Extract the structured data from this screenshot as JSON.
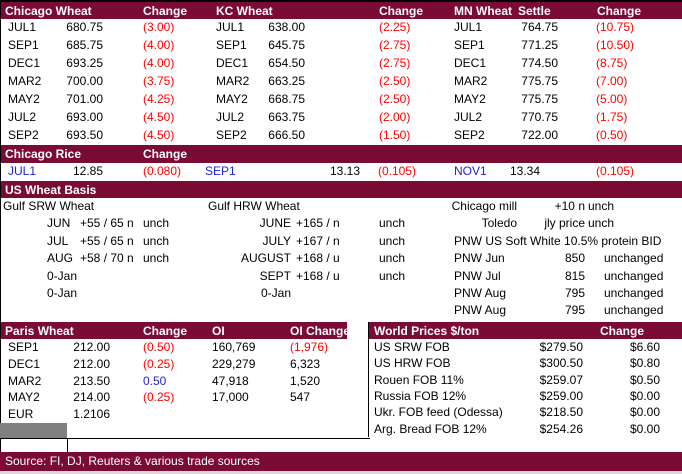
{
  "colors": {
    "maroon": "#7A0B35",
    "negative_red": "#FF0000",
    "positive_blue": "#2222CC",
    "gray_cell": "#808080",
    "bottom_strip": "#D9D9D9"
  },
  "futures": {
    "chicago_title": "Chicago Wheat",
    "chicago_change_label": "Change",
    "kc_title": "KC Wheat",
    "kc_change_label": "Change",
    "mn_title": "MN Wheat",
    "mn_settle_label": "Settle",
    "mn_change_label": "Change",
    "rows": [
      {
        "m1": "JUL1",
        "p1": "680.75",
        "c1": "(3.00)",
        "m2": "JUL1",
        "p2": "638.00",
        "c2": "(2.25)",
        "m3": "JUL1",
        "p3": "764.75",
        "c3": "(10.75)"
      },
      {
        "m1": "SEP1",
        "p1": "685.75",
        "c1": "(4.00)",
        "m2": "SEP1",
        "p2": "645.75",
        "c2": "(2.75)",
        "m3": "SEP1",
        "p3": "771.25",
        "c3": "(10.50)"
      },
      {
        "m1": "DEC1",
        "p1": "693.25",
        "c1": "(4.00)",
        "m2": "DEC1",
        "p2": "654.50",
        "c2": "(2.75)",
        "m3": "DEC1",
        "p3": "774.50",
        "c3": "(8.75)"
      },
      {
        "m1": "MAR2",
        "p1": "700.00",
        "c1": "(3.75)",
        "m2": "MAR2",
        "p2": "663.25",
        "c2": "(2.50)",
        "m3": "MAR2",
        "p3": "775.75",
        "c3": "(7.00)"
      },
      {
        "m1": "MAY2",
        "p1": "701.00",
        "c1": "(4.25)",
        "m2": "MAY2",
        "p2": "668.75",
        "c2": "(2.50)",
        "m3": "MAY2",
        "p3": "775.75",
        "c3": "(5.00)"
      },
      {
        "m1": "JUL2",
        "p1": "693.00",
        "c1": "(4.50)",
        "m2": "JUL2",
        "p2": "663.75",
        "c2": "(2.00)",
        "m3": "JUL2",
        "p3": "770.75",
        "c3": "(1.75)"
      },
      {
        "m1": "SEP2",
        "p1": "693.50",
        "c1": "(4.50)",
        "m2": "SEP2",
        "p2": "666.50",
        "c2": "(1.50)",
        "m3": "SEP2",
        "p3": "722.00",
        "c3": "(0.50)"
      }
    ]
  },
  "rice": {
    "title": "Chicago Rice",
    "change_label": "Change",
    "m1": "JUL1",
    "p1": "12.85",
    "c1": "(0.080)",
    "m2": "SEP1",
    "p2": "13.13",
    "c2": "(0.105)",
    "m3": "NOV1",
    "p3": "13.34",
    "c3": "(0.105)"
  },
  "basis": {
    "title": "US Wheat Basis",
    "rows": [
      {
        "st": "Gulf SRW Wheat",
        "ht": "Gulf HRW Wheat",
        "mill_r": "Chicago mill",
        "mval": "+10 n",
        "mchg_a": "unch"
      },
      {
        "sm": "JUN",
        "sv": "+55 / 65 n",
        "sc": "unch",
        "hm": "JUNE",
        "hv": "+165 / n",
        "hc": "unch",
        "mill_r": "Toledo",
        "mval": "jly price",
        "mchg_a": "unch"
      },
      {
        "sm": "JUL",
        "sv": "+55 / 65 n",
        "sc": "unch",
        "hm": "JULY",
        "hv": "+167 / n",
        "hc": "unch",
        "mill_long": "PNW US Soft White 10.5% protein BID"
      },
      {
        "sm": "AUG",
        "sv": "+58 / 70 n",
        "sc": "unch",
        "hm": "AUGUST",
        "hv": "+168 / u",
        "hc": "unch",
        "mill_l": "PNW Jun",
        "mval": "850",
        "mchg_b": "unchanged"
      },
      {
        "sm": "0-Jan",
        "hm": "SEPT",
        "hv": "+168 / u",
        "hc": "unch",
        "mill_l": "PNW Jul",
        "mval": "815",
        "mchg_b": "unchanged"
      },
      {
        "sm": "0-Jan",
        "hm": "0-Jan",
        "mill_l": "PNW Aug",
        "mval": "795",
        "mchg_b": "unchanged"
      },
      {
        "mill_l": "PNW Aug",
        "mval": "795",
        "mchg_b": "unchanged"
      }
    ]
  },
  "paris": {
    "title": "Paris Wheat",
    "change_label": "Change",
    "oi_label": "OI",
    "oi_change_label": "OI Change",
    "rows": [
      {
        "m": "SEP1",
        "p": "212.00",
        "cn": "(0.50)",
        "oi": "160,769",
        "oin": "(1,976)"
      },
      {
        "m": "DEC1",
        "p": "212.00",
        "cn": "(0.25)",
        "oi": "229,279",
        "oip": "6,323"
      },
      {
        "m": "MAR2",
        "p": "213.50",
        "cp": "0.50",
        "oi": "47,918",
        "oip": "1,520"
      },
      {
        "m": "MAY2",
        "p": "214.00",
        "cn": "(0.25)",
        "oi": "17,000",
        "oip": "547"
      },
      {
        "m": "EUR",
        "p": "1.2106"
      }
    ]
  },
  "world": {
    "title": "World Prices $/ton",
    "change_label": "Change",
    "rows": [
      {
        "label": "US SRW FOB",
        "price": "$279.50",
        "chg": "$6.60"
      },
      {
        "label": "US HRW FOB",
        "price": "$300.50",
        "chg": "$0.80"
      },
      {
        "label": "Rouen FOB 11%",
        "price": "$259.07",
        "chg": "$0.50"
      },
      {
        "label": "Russia FOB 12%",
        "price": "$259.00",
        "chg": "$0.00"
      },
      {
        "label": "Ukr. FOB feed (Odessa)",
        "price": "$218.50",
        "chg": "$0.00"
      },
      {
        "label": "Arg. Bread FOB 12%",
        "price": "$254.26",
        "chg": "$0.00"
      }
    ]
  },
  "footer": {
    "source": "Source: FI, DJ, Reuters & various trade sources"
  }
}
